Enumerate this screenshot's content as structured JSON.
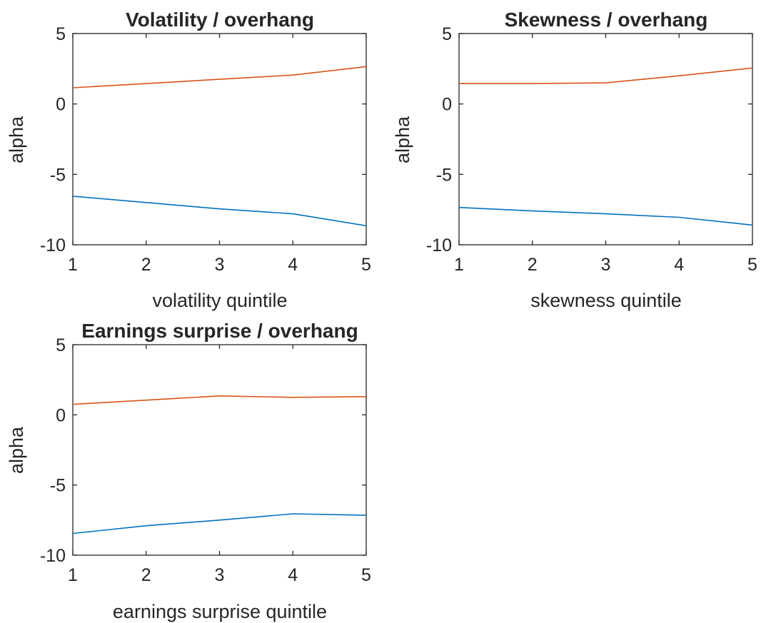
{
  "chart_data": [
    {
      "type": "line",
      "title": "Volatility / overhang",
      "xlabel": "volatility quintile",
      "ylabel": "alpha",
      "x": [
        1,
        2,
        3,
        4,
        5
      ],
      "xlim": [
        1,
        5
      ],
      "ylim": [
        -10,
        5
      ],
      "xticks": [
        "1",
        "2",
        "3",
        "4",
        "5"
      ],
      "yticks": [
        "5",
        "0",
        "-5",
        "-10"
      ],
      "grid": false,
      "series": [
        {
          "values": [
            1.15,
            1.45,
            1.75,
            2.05,
            2.65
          ],
          "color": "#D95319"
        },
        {
          "values": [
            -6.55,
            -7.0,
            -7.45,
            -7.8,
            -8.65
          ],
          "color": "#0072BD"
        }
      ]
    },
    {
      "type": "line",
      "title": "Skewness / overhang",
      "xlabel": "skewness quintile",
      "ylabel": "alpha",
      "x": [
        1,
        2,
        3,
        4,
        5
      ],
      "xlim": [
        1,
        5
      ],
      "ylim": [
        -10,
        5
      ],
      "xticks": [
        "1",
        "2",
        "3",
        "4",
        "5"
      ],
      "yticks": [
        "5",
        "0",
        "-5",
        "-10"
      ],
      "grid": false,
      "series": [
        {
          "values": [
            1.45,
            1.45,
            1.5,
            2.0,
            2.55
          ],
          "color": "#D95319"
        },
        {
          "values": [
            -7.35,
            -7.6,
            -7.8,
            -8.05,
            -8.6
          ],
          "color": "#0072BD"
        }
      ]
    },
    {
      "type": "line",
      "title": "Earnings surprise / overhang",
      "xlabel": "earnings surprise quintile",
      "ylabel": "alpha",
      "x": [
        1,
        2,
        3,
        4,
        5
      ],
      "xlim": [
        1,
        5
      ],
      "ylim": [
        -10,
        5
      ],
      "xticks": [
        "1",
        "2",
        "3",
        "4",
        "5"
      ],
      "yticks": [
        "5",
        "0",
        "-5",
        "-10"
      ],
      "grid": false,
      "series": [
        {
          "values": [
            0.75,
            1.05,
            1.35,
            1.25,
            1.3
          ],
          "color": "#D95319"
        },
        {
          "values": [
            -8.45,
            -7.9,
            -7.5,
            -7.05,
            -7.15
          ],
          "color": "#0072BD"
        }
      ]
    }
  ]
}
